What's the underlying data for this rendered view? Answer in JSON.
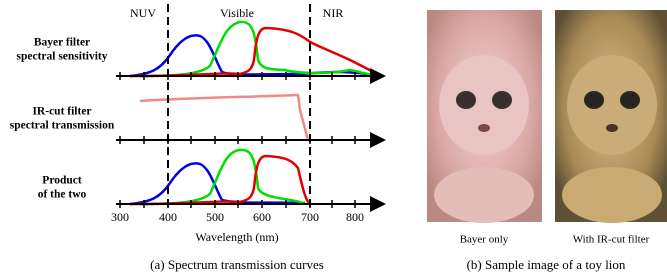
{
  "panel_a": {
    "regions": [
      "NUV",
      "Visible",
      "NIR"
    ],
    "rows": [
      [
        "Bayer filter",
        "spectral sensitivity"
      ],
      [
        "IR-cut filter",
        "spectral transmission"
      ],
      [
        "Product",
        "of the two"
      ]
    ],
    "x_ticks": [
      300,
      400,
      500,
      600,
      700,
      800
    ],
    "x_label": "Wavelength (nm)",
    "caption": "(a) Spectrum transmission curves"
  },
  "panel_b": {
    "image_labels": [
      "Bayer only",
      "With IR-cut filter"
    ],
    "caption": "(b) Sample image of a toy lion"
  }
}
